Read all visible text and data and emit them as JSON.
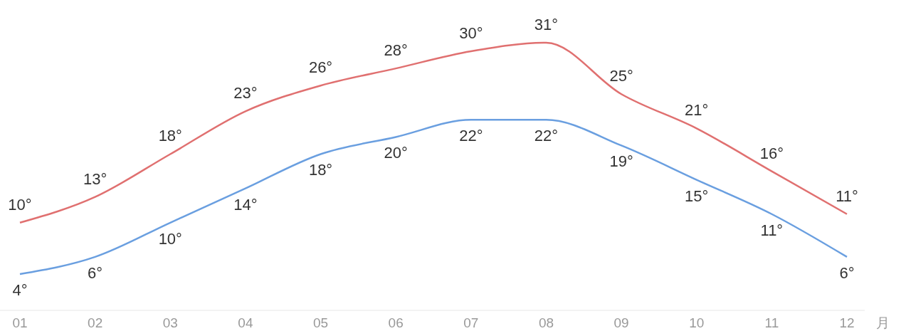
{
  "chart_data": {
    "type": "line",
    "xlabel": "月",
    "categories": [
      "01",
      "02",
      "03",
      "04",
      "05",
      "06",
      "07",
      "08",
      "09",
      "10",
      "11",
      "12"
    ],
    "series": [
      {
        "color": "#e07070",
        "values": [
          10,
          13,
          18,
          23,
          26,
          28,
          30,
          31,
          25,
          21,
          16,
          11
        ],
        "value_labels": [
          "10°",
          "13°",
          "18°",
          "23°",
          "26°",
          "28°",
          "30°",
          "31°",
          "25°",
          "21°",
          "16°",
          "11°"
        ]
      },
      {
        "color": "#6a9fe0",
        "values": [
          4,
          6,
          10,
          14,
          18,
          20,
          22,
          22,
          19,
          15,
          11,
          6
        ],
        "value_labels": [
          "4°",
          "6°",
          "10°",
          "14°",
          "18°",
          "20°",
          "22°",
          "22°",
          "19°",
          "15°",
          "11°",
          "6°"
        ]
      }
    ],
    "marker": "none",
    "line_style": "solid"
  }
}
